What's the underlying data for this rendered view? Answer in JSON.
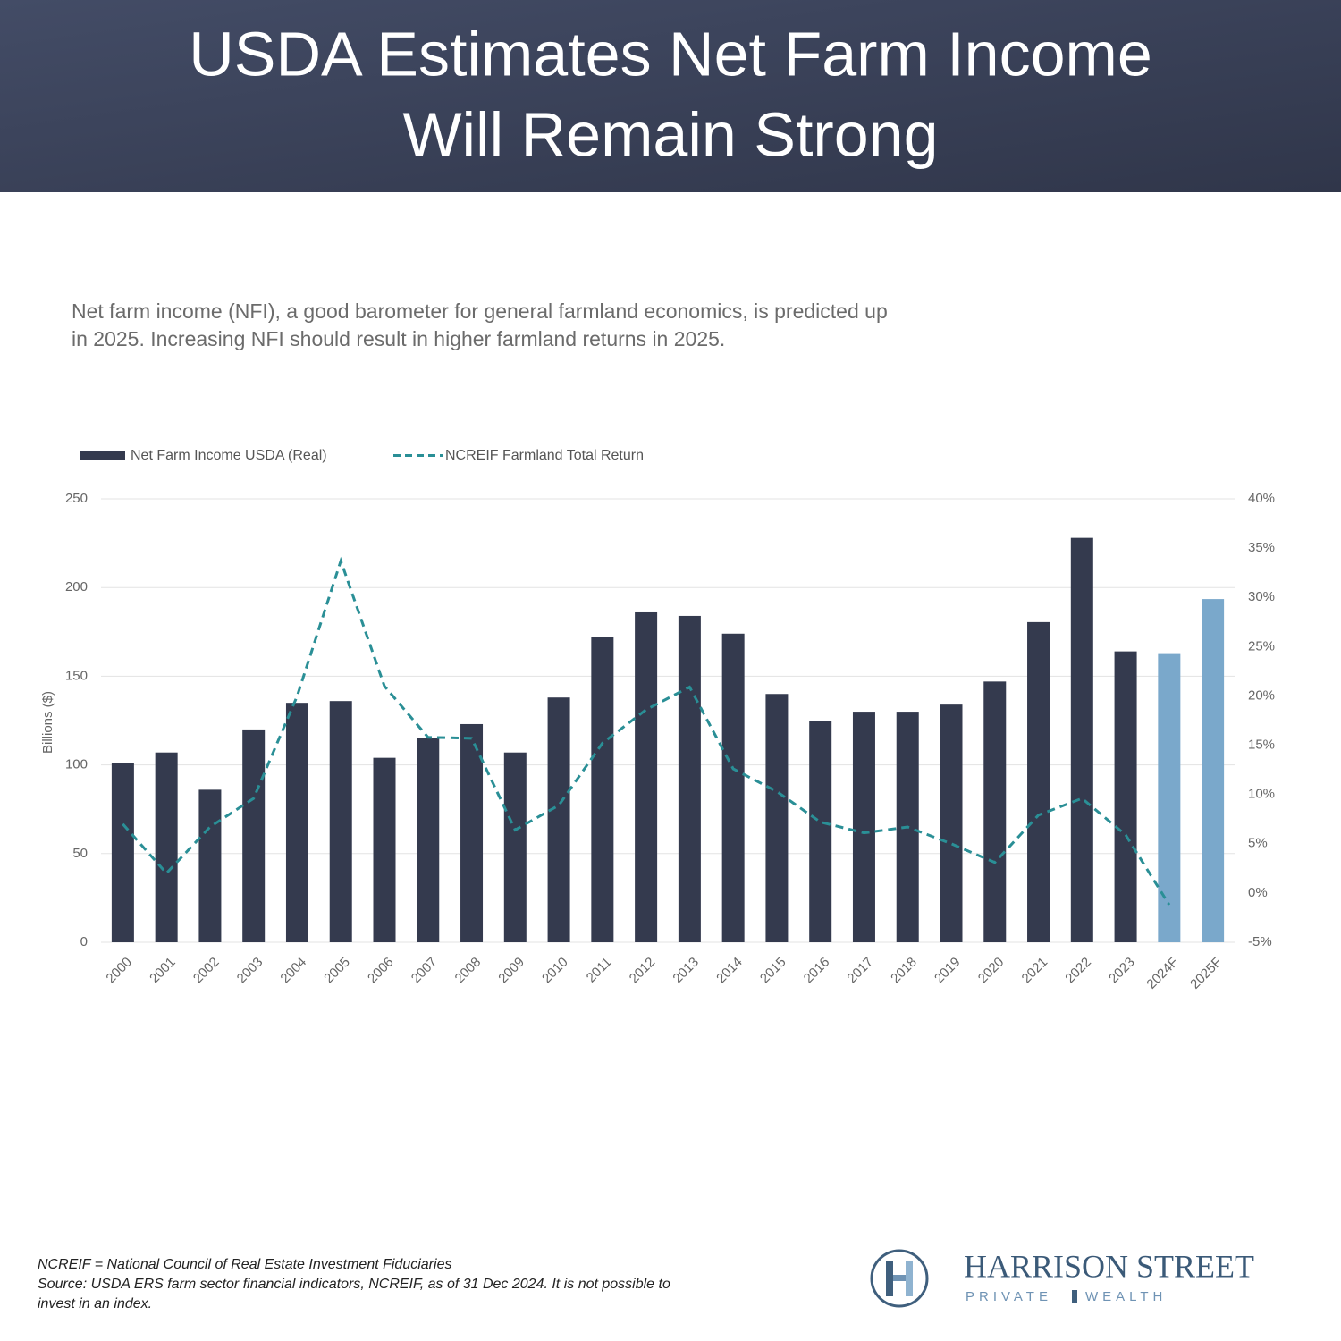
{
  "chart_data": {
    "type": "combo",
    "title": [
      "USDA Estimates Net Farm Income",
      "Will Remain Strong"
    ],
    "subtitle": [
      "Net farm income (NFI), a good barometer for general farmland economics, is predicted up",
      "in 2025. Increasing NFI should result in higher farmland returns in 2025."
    ],
    "y_label": "Billions ($)",
    "categories": [
      "2000",
      "2001",
      "2002",
      "2003",
      "2004",
      "2005",
      "2006",
      "2007",
      "2008",
      "2009",
      "2010",
      "2011",
      "2012",
      "2013",
      "2014",
      "2015",
      "2016",
      "2017",
      "2018",
      "2019",
      "2020",
      "2021",
      "2022",
      "2023",
      "2024F",
      "2025F"
    ],
    "series": [
      {
        "name": "Net Farm Income USDA (Real)",
        "type": "bar",
        "color": "#343a4e",
        "colors": [
          "#343a4e",
          "#343a4e",
          "#343a4e",
          "#343a4e",
          "#343a4e",
          "#343a4e",
          "#343a4e",
          "#343a4e",
          "#343a4e",
          "#343a4e",
          "#343a4e",
          "#343a4e",
          "#343a4e",
          "#343a4e",
          "#343a4e",
          "#343a4e",
          "#343a4e",
          "#343a4e",
          "#343a4e",
          "#343a4e",
          "#343a4e",
          "#343a4e",
          "#343a4e",
          "#343a4e",
          "#7aa8cb",
          "#7aa8cb"
        ],
        "values": [
          101,
          107,
          86,
          120,
          135,
          136,
          104,
          115,
          123,
          107,
          138,
          172,
          186,
          184,
          174,
          140,
          125,
          130,
          130,
          134,
          147,
          180.5,
          228,
          164,
          163,
          193.5
        ]
      },
      {
        "name": "NCREIF Farmland Total Return",
        "type": "line",
        "axis": "y2",
        "color": "#2a8f96",
        "values": [
          7,
          2,
          6.7,
          9.6,
          20,
          33.7,
          21,
          15.8,
          15.7,
          6.4,
          8.9,
          15.2,
          18.6,
          20.9,
          12.6,
          10.3,
          7.2,
          6.1,
          6.7,
          5,
          3.1,
          7.9,
          9.6,
          5.9,
          -1.2,
          null
        ]
      }
    ],
    "ylim": [
      0,
      250
    ],
    "yticks": [
      0,
      50,
      100,
      150,
      200,
      250
    ],
    "y2lim": [
      -5,
      40
    ],
    "y2ticks": [
      {
        "value": -5,
        "label": "-5%"
      },
      {
        "value": 0,
        "label": "0%"
      },
      {
        "value": 5,
        "label": "5%"
      },
      {
        "value": 10,
        "label": "10%"
      },
      {
        "value": 15,
        "label": "15%"
      },
      {
        "value": 20,
        "label": "20%"
      },
      {
        "value": 25,
        "label": "25%"
      },
      {
        "value": 30,
        "label": "30%"
      },
      {
        "value": 35,
        "label": "35%"
      },
      {
        "value": 40,
        "label": "40%"
      }
    ],
    "grid": true,
    "footnotes": [
      "NCREIF = National Council of Real Estate Investment Fiduciaries",
      "Source: USDA ERS farm sector financial indicators, NCREIF, as of 31 Dec 2024. It is not possible to",
      "invest in an index."
    ]
  },
  "logo": {
    "name": "HARRISON STREET",
    "tagline": [
      "PRIVATE",
      "WEALTH"
    ]
  }
}
